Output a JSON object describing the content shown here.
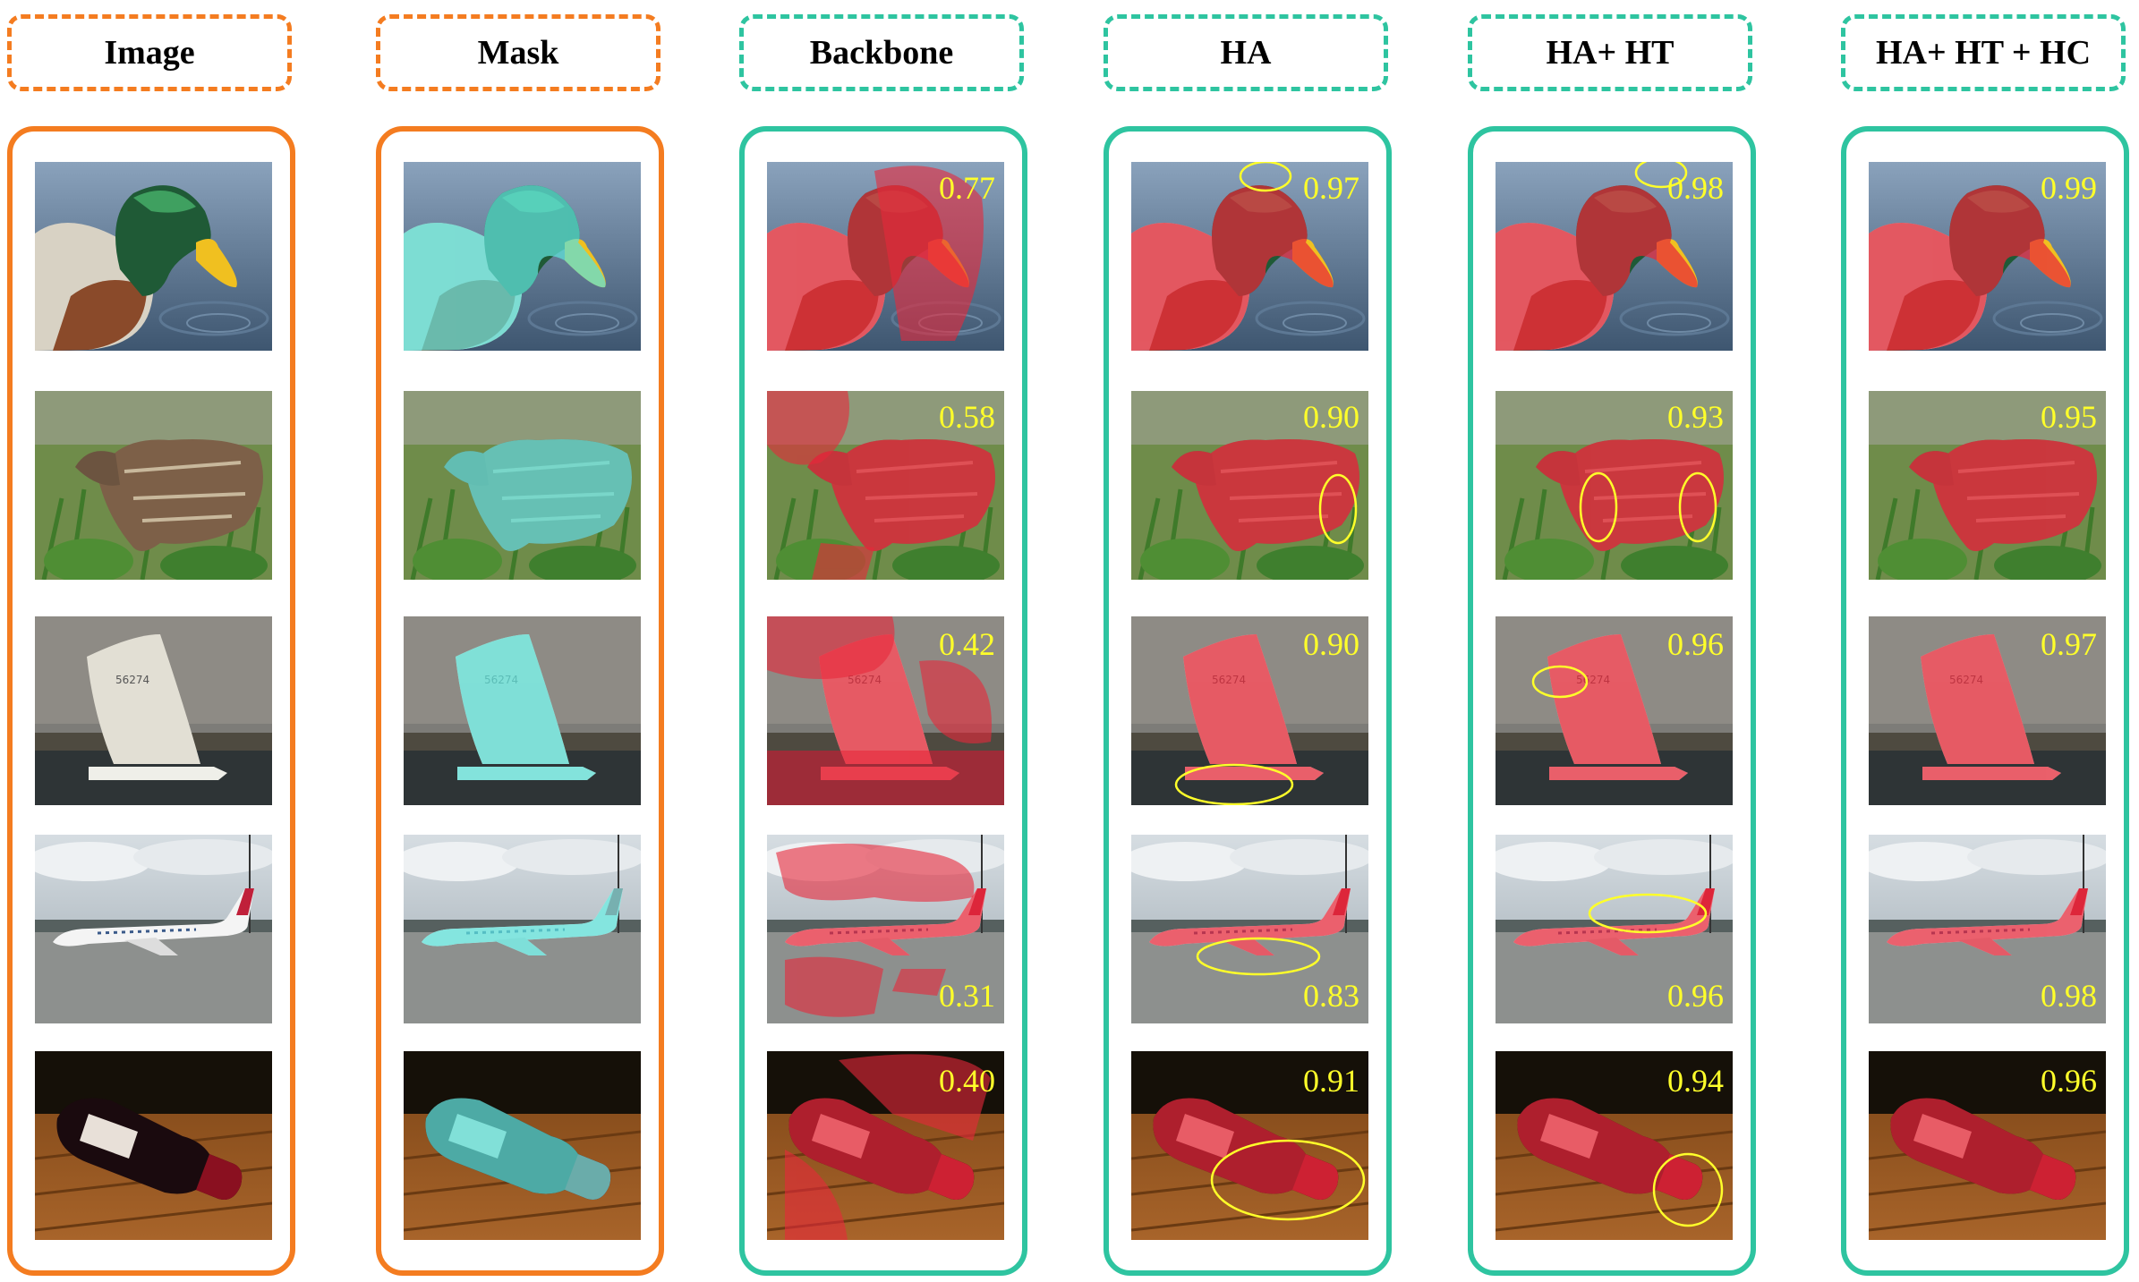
{
  "columns": [
    {
      "key": "image",
      "title": "Image",
      "style": "orange"
    },
    {
      "key": "mask",
      "title": "Mask",
      "style": "orange"
    },
    {
      "key": "backbone",
      "title": "Backbone",
      "style": "teal"
    },
    {
      "key": "ha",
      "title": "HA",
      "style": "teal"
    },
    {
      "key": "ha_ht",
      "title": "HA+ HT",
      "style": "teal"
    },
    {
      "key": "ha_ht_hc",
      "title": "HA+ HT + HC",
      "style": "teal"
    }
  ],
  "rows": [
    {
      "subject": "duck",
      "scores": {
        "backbone": "0.77",
        "ha": "0.97",
        "ha_ht": "0.98",
        "ha_ht_hc": "0.99"
      }
    },
    {
      "subject": "quail",
      "scores": {
        "backbone": "0.58",
        "ha": "0.90",
        "ha_ht": "0.93",
        "ha_ht_hc": "0.95"
      }
    },
    {
      "subject": "sailboat",
      "scores": {
        "backbone": "0.42",
        "ha": "0.90",
        "ha_ht": "0.96",
        "ha_ht_hc": "0.97"
      }
    },
    {
      "subject": "airplane",
      "scores": {
        "backbone": "0.31",
        "ha": "0.83",
        "ha_ht": "0.96",
        "ha_ht_hc": "0.98"
      }
    },
    {
      "subject": "wine-bottle",
      "scores": {
        "backbone": "0.40",
        "ha": "0.91",
        "ha_ht": "0.94",
        "ha_ht_hc": "0.96"
      }
    }
  ],
  "colors": {
    "orange_border": "#f47c20",
    "teal_border": "#2ec4a0",
    "mask_overlay": "#5fe0d8",
    "prediction_overlay": "#e8283a",
    "score_text": "#ffff2a",
    "highlight_ellipse": "#ffff2a"
  }
}
